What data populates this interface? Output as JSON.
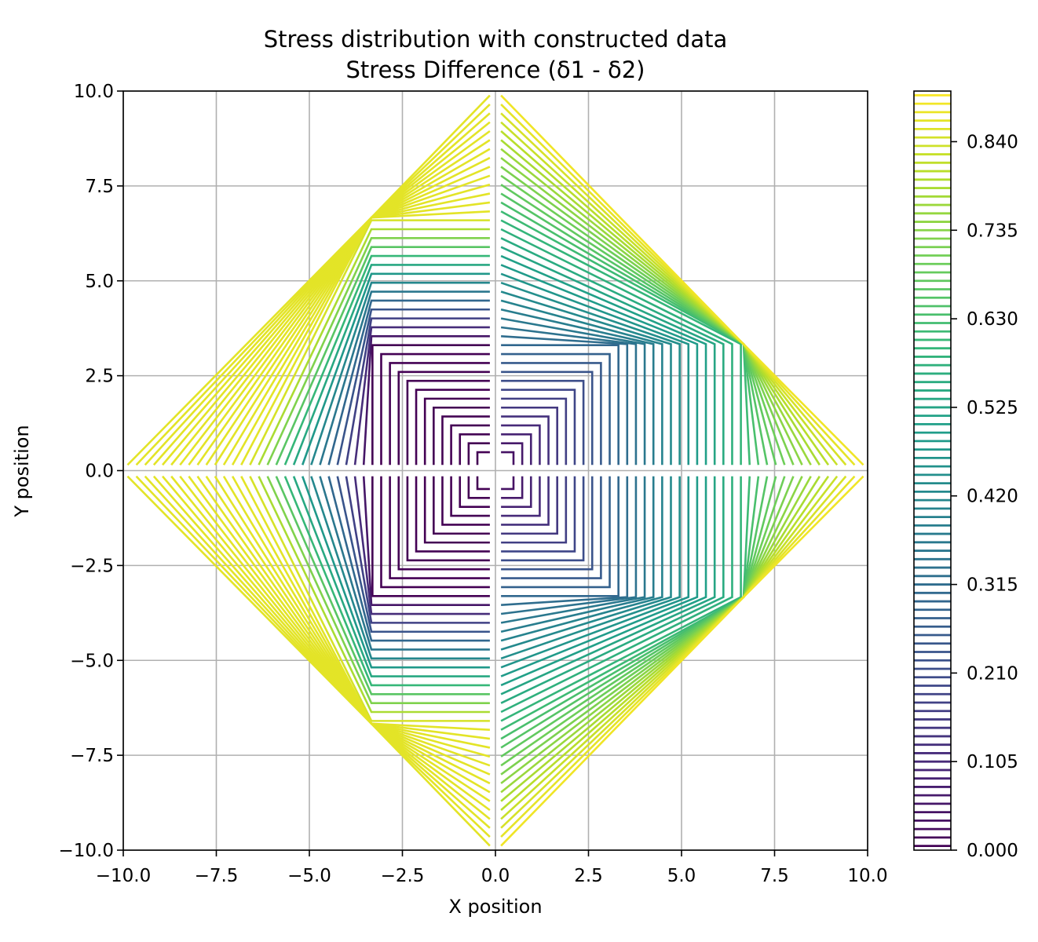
{
  "chart_data": {
    "type": "contour",
    "title": "Stress distribution with constructed data",
    "subtitle": "Stress Difference (δ1 - δ2)",
    "xlabel": "X position",
    "ylabel": "Y position",
    "xlim": [
      -10.0,
      10.0
    ],
    "ylim": [
      -10.0,
      10.0
    ],
    "grid": true,
    "colormap": "viridis",
    "colormap_stops": [
      "#440154",
      "#482878",
      "#3e4989",
      "#31688e",
      "#26828e",
      "#1f9e89",
      "#35b779",
      "#6ece58",
      "#b5de2b",
      "#fde725"
    ],
    "x_ticks": [
      "−10.0",
      "−7.5",
      "−5.0",
      "−2.5",
      "0.0",
      "2.5",
      "5.0",
      "7.5",
      "10.0"
    ],
    "y_ticks": [
      "−10.0",
      "−7.5",
      "−5.0",
      "−2.5",
      "0.0",
      "2.5",
      "5.0",
      "7.5",
      "10.0"
    ],
    "x_tick_values": [
      -10.0,
      -7.5,
      -5.0,
      -2.5,
      0.0,
      2.5,
      5.0,
      7.5,
      10.0
    ],
    "y_tick_values": [
      -10.0,
      -7.5,
      -5.0,
      -2.5,
      0.0,
      2.5,
      5.0,
      7.5,
      10.0
    ],
    "colorbar": {
      "range": [
        0.0,
        0.9
      ],
      "levels": 90,
      "ticks": [
        "0.000",
        "0.105",
        "0.210",
        "0.315",
        "0.420",
        "0.525",
        "0.630",
        "0.735",
        "0.840"
      ],
      "tick_values": [
        0.0,
        0.105,
        0.21,
        0.315,
        0.42,
        0.525,
        0.63,
        0.735,
        0.84
      ]
    },
    "regions": [
      {
        "quadrant": "upper-left",
        "value_range": [
          0.0,
          0.9
        ],
        "peak_near": [
          -6.7,
          6.7
        ]
      },
      {
        "quadrant": "upper-right",
        "value_range": [
          0.0,
          0.9
        ],
        "peak_near": [
          6.7,
          6.7
        ]
      },
      {
        "quadrant": "lower-left",
        "value_range": [
          0.0,
          0.9
        ],
        "peak_near": [
          -6.7,
          -6.7
        ]
      },
      {
        "quadrant": "lower-right",
        "value_range": [
          0.0,
          0.9
        ],
        "peak_near": [
          6.7,
          -6.7
        ]
      }
    ]
  }
}
